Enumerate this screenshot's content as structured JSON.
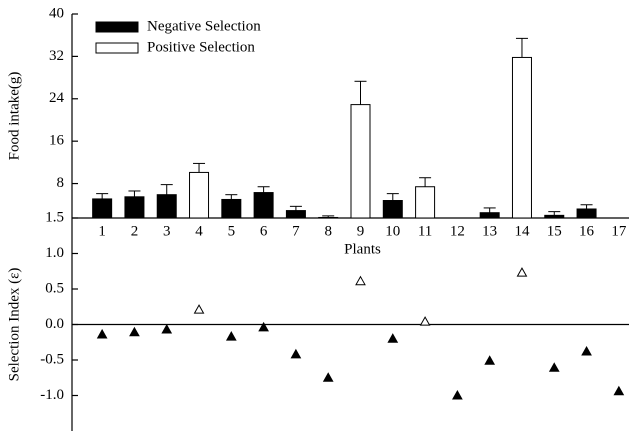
{
  "chart_data": [
    {
      "type": "bar",
      "ylabel": "Food intake(g)",
      "xlabel": "Plants",
      "categories": [
        "1",
        "2",
        "3",
        "4",
        "5",
        "6",
        "7",
        "8",
        "9",
        "10",
        "11",
        "12",
        "13",
        "14",
        "15",
        "16",
        "17"
      ],
      "ylim": [
        1.5,
        40
      ],
      "yticks": [
        1.5,
        8,
        16,
        24,
        32,
        40
      ],
      "legend": "upper left",
      "series": [
        {
          "name": "Negative Selection",
          "color": "#000000",
          "values": [
            5.1,
            5.5,
            5.9,
            null,
            5.0,
            6.3,
            2.9,
            1.6,
            null,
            4.8,
            null,
            null,
            2.5,
            null,
            2.0,
            3.2,
            null
          ],
          "errors": [
            1.0,
            1.1,
            1.9,
            null,
            0.9,
            1.1,
            0.8,
            0.3,
            null,
            1.3,
            null,
            null,
            0.9,
            null,
            0.7,
            0.8,
            null
          ]
        },
        {
          "name": "Positive Selection",
          "color": "#ffffff",
          "values": [
            null,
            null,
            null,
            10.1,
            null,
            null,
            null,
            null,
            22.9,
            null,
            7.4,
            null,
            null,
            31.8,
            null,
            null,
            null
          ],
          "errors": [
            null,
            null,
            null,
            1.7,
            null,
            null,
            null,
            null,
            4.4,
            null,
            1.7,
            null,
            null,
            3.6,
            null,
            null,
            null
          ]
        }
      ]
    },
    {
      "type": "scatter",
      "ylabel": "Selection Index (ε)",
      "ylim": [
        -1.5,
        1.5
      ],
      "yticks": [
        {
          "value": -1.0,
          "label": "-1.0"
        },
        -0.5,
        {
          "value": 0.0,
          "label": "0.0"
        },
        0.5,
        {
          "value": 1.0,
          "label": "1.0"
        }
      ],
      "series": [
        {
          "color": "#000000",
          "values": [
            -0.14,
            -0.11,
            -0.07,
            null,
            -0.17,
            -0.04,
            -0.42,
            -0.75,
            null,
            -0.2,
            null,
            -1.0,
            -0.51,
            null,
            -0.61,
            -0.38,
            -0.94
          ]
        },
        {
          "color": "#ffffff",
          "values": [
            null,
            null,
            null,
            0.21,
            null,
            null,
            null,
            null,
            0.61,
            null,
            0.04,
            null,
            null,
            0.73,
            null,
            null,
            null
          ]
        }
      ]
    }
  ]
}
